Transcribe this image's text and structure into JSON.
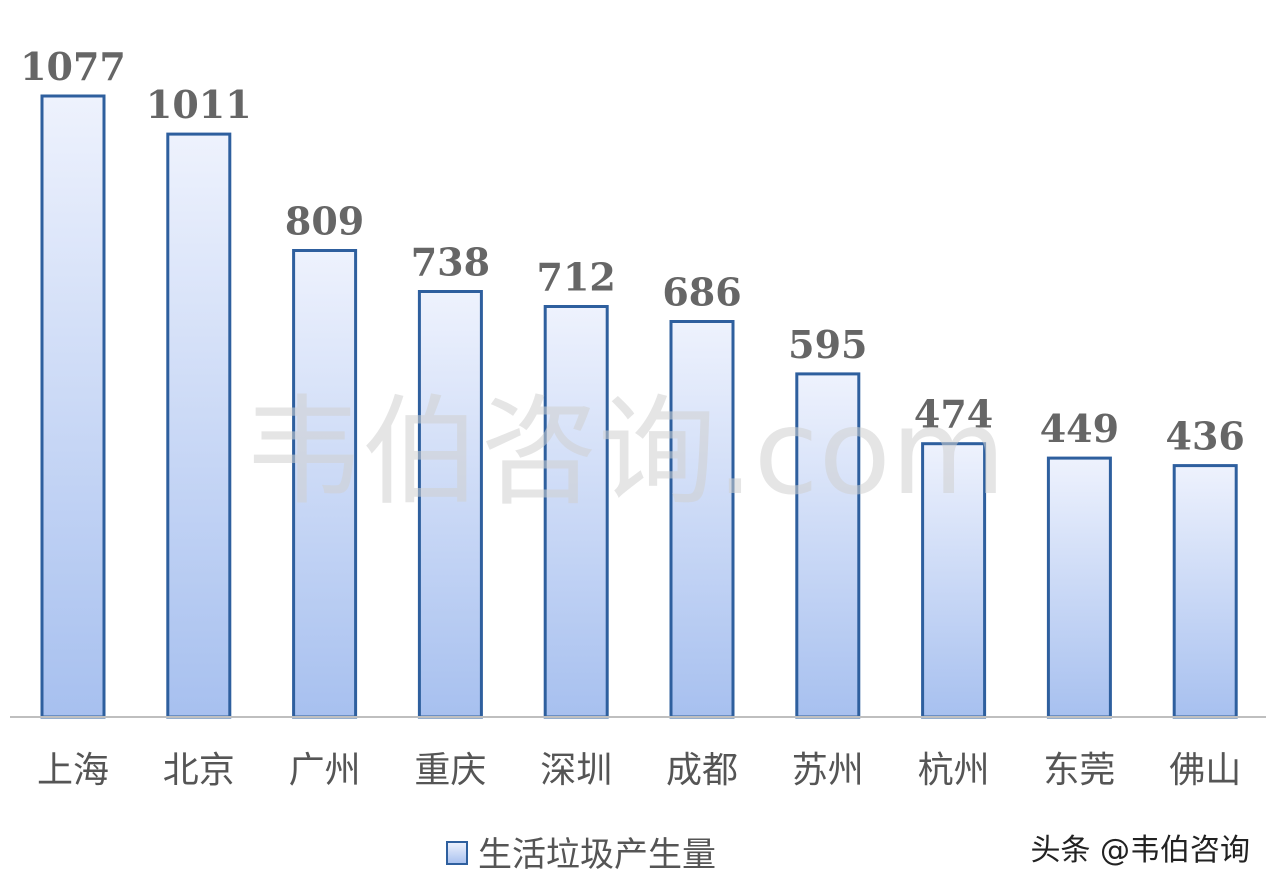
{
  "chart_data": {
    "type": "bar",
    "categories": [
      "上海",
      "北京",
      "广州",
      "重庆",
      "深圳",
      "成都",
      "苏州",
      "杭州",
      "东莞",
      "佛山"
    ],
    "series": [
      {
        "name": "生活垃圾产生量",
        "values": [
          1077,
          1011,
          809,
          738,
          712,
          686,
          595,
          474,
          449,
          436
        ]
      }
    ],
    "ylim": [
      0,
      1077
    ],
    "grid": false,
    "legend": "bottom-center",
    "data_labels": true,
    "colors": {
      "bar_edge": "#2e5f9e",
      "bar_top": "#eef2fd",
      "bar_bottom": "#a7c0ef",
      "axis": "#bfbfbf",
      "label": "#666666"
    }
  },
  "watermark": "韦伯咨询.com",
  "credit": "头条 @韦伯咨询"
}
